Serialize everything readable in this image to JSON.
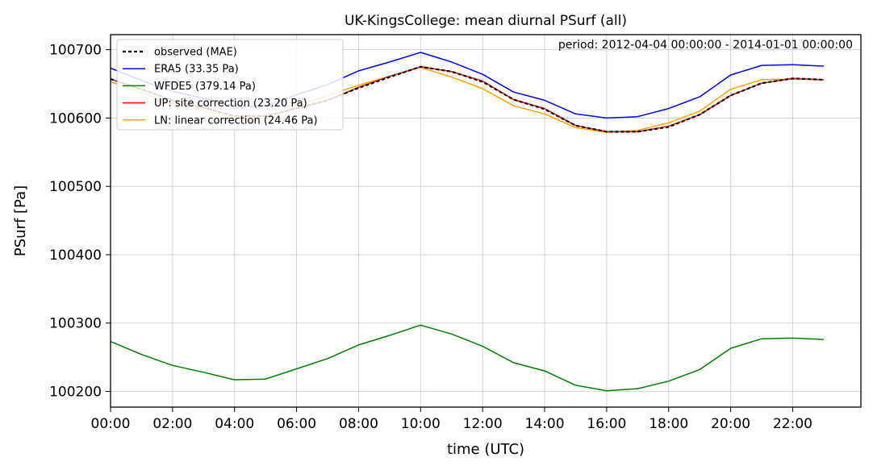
{
  "chart_data": {
    "type": "line",
    "title": "UK-KingsCollege: mean diurnal PSurf (all)",
    "xlabel": "time (UTC)",
    "ylabel": "PSurf [Pa]",
    "annotation": "period: 2012-04-04 00:00:00 - 2014-01-01 00:00:00",
    "xlim": [
      0,
      24.2
    ],
    "ylim": [
      100177,
      100722
    ],
    "xticks": [
      0,
      2,
      4,
      6,
      8,
      10,
      12,
      14,
      16,
      18,
      20,
      22
    ],
    "xtick_labels": [
      "00:00",
      "02:00",
      "04:00",
      "06:00",
      "08:00",
      "10:00",
      "12:00",
      "14:00",
      "16:00",
      "18:00",
      "20:00",
      "22:00"
    ],
    "yticks": [
      100200,
      100300,
      100400,
      100500,
      100600,
      100700
    ],
    "ytick_labels": [
      "100200",
      "100300",
      "100400",
      "100500",
      "100600",
      "100700"
    ],
    "grid": true,
    "legend_position": "top-left",
    "x": [
      0,
      1,
      2,
      3,
      4,
      5,
      6,
      7,
      8,
      9,
      10,
      11,
      12,
      13,
      14,
      15,
      16,
      17,
      18,
      19,
      20,
      21,
      22,
      23
    ],
    "series": [
      {
        "name": "WFDE5",
        "label": "WFDE5 (379.14 Pa)",
        "color": "#008000",
        "dash": "solid",
        "values": [
          100273,
          100254,
          100238,
          100228,
          100217,
          100218,
          100233,
          100248,
          100268,
          100282,
          100297,
          100284,
          100266,
          100242,
          100230,
          100209,
          100201,
          100204,
          100215,
          100232,
          100263,
          100277,
          100278,
          100276
        ]
      },
      {
        "name": "ERA5",
        "label": "ERA5 (33.35 Pa)",
        "color": "#0000ff",
        "dash": "solid",
        "values": [
          100673,
          100655,
          100639,
          100629,
          100617,
          100618,
          100634,
          100649,
          100669,
          100682,
          100696,
          100682,
          100664,
          100638,
          100626,
          100606,
          100600,
          100602,
          100614,
          100631,
          100663,
          100677,
          100678,
          100676
        ]
      },
      {
        "name": "LN",
        "label": "LN: linear correction (24.46 Pa)",
        "color": "#ffa500",
        "dash": "solid",
        "values": [
          100653,
          100637,
          100621,
          100611,
          100600,
          100600,
          100616,
          100633,
          100648,
          100661,
          100674,
          100660,
          100643,
          100618,
          100606,
          100586,
          100579,
          100582,
          100593,
          100610,
          100642,
          100656,
          100657,
          100656
        ]
      },
      {
        "name": "UP",
        "label": "UP: site correction (23.20 Pa)",
        "color": "#ff0000",
        "dash": "solid",
        "values": [
          100657,
          100642,
          100626,
          100615,
          100603,
          100603,
          100614,
          100626,
          100645,
          100661,
          100675,
          100668,
          100654,
          100627,
          100614,
          100589,
          100580,
          100580,
          100588,
          100605,
          100633,
          100651,
          100658,
          100656
        ]
      },
      {
        "name": "observed",
        "label": "observed (MAE)",
        "color": "#000000",
        "dash": "dashed",
        "values": [
          100657,
          100642,
          100626,
          100615,
          100603,
          100603,
          100614,
          100626,
          100644,
          100660,
          100675,
          100668,
          100653,
          100627,
          100613,
          100589,
          100580,
          100580,
          100587,
          100605,
          100633,
          100651,
          100658,
          100656
        ]
      }
    ],
    "legend_order": [
      "observed",
      "ERA5",
      "WFDE5",
      "UP",
      "LN"
    ]
  }
}
